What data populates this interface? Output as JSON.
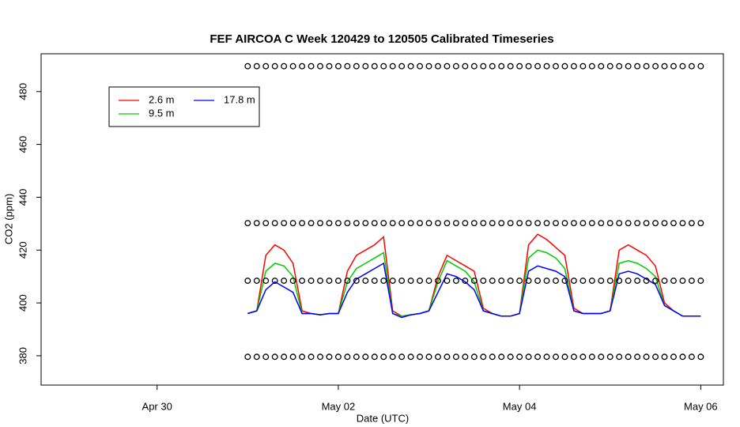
{
  "chart_data": {
    "type": "line",
    "title": "FEF AIRCOA C  Week 120429 to 120505  Calibrated Timeseries",
    "x_label": "Date (UTC)",
    "y_label": "CO2 (ppm)",
    "xlim": [
      -0.28,
      7.25
    ],
    "ylim": [
      368.9,
      494.3
    ],
    "xticks": [
      {
        "value": 1,
        "label": "Apr 30"
      },
      {
        "value": 3,
        "label": "May 02"
      },
      {
        "value": 5,
        "label": "May 04"
      },
      {
        "value": 7,
        "label": "May 06"
      }
    ],
    "yticks": [
      380,
      400,
      420,
      440,
      460,
      480
    ],
    "grid": false,
    "legend": "top-left",
    "x": [
      2.0,
      2.1,
      2.2,
      2.3,
      2.4,
      2.5,
      2.6,
      2.7,
      2.8,
      2.9,
      3.0,
      3.1,
      3.2,
      3.3,
      3.4,
      3.5,
      3.6,
      3.7,
      3.8,
      3.9,
      4.0,
      4.1,
      4.2,
      4.3,
      4.4,
      4.5,
      4.6,
      4.7,
      4.8,
      4.9,
      5.0,
      5.1,
      5.2,
      5.3,
      5.4,
      5.5,
      5.6,
      5.7,
      5.8,
      5.9,
      6.0,
      6.1,
      6.2,
      6.3,
      6.4,
      6.5,
      6.6,
      6.7,
      6.8,
      6.9,
      7.0
    ],
    "series": [
      {
        "name": "2.6 m",
        "color": "#ff0000",
        "values": [
          396,
          397,
          418,
          422,
          420,
          415,
          397,
          396,
          395.5,
          396,
          396,
          412,
          418,
          420,
          422,
          425,
          397,
          395,
          395.5,
          396,
          397,
          410,
          418,
          416,
          414,
          412,
          398,
          396,
          395,
          395,
          396,
          422,
          426,
          424,
          421,
          418,
          398,
          396,
          396,
          396,
          397,
          420,
          422,
          420,
          418,
          414,
          400,
          397,
          395,
          395,
          395
        ]
      },
      {
        "name": "9.5 m",
        "color": "#00cc00",
        "values": [
          396,
          397,
          412,
          415,
          414,
          410,
          396,
          396,
          395.5,
          396,
          396,
          408,
          413,
          415,
          417,
          419,
          396,
          395,
          395.5,
          396,
          397,
          408,
          416,
          414,
          412,
          408,
          397,
          396,
          395,
          395,
          396,
          417,
          420,
          419,
          417,
          413,
          397,
          396,
          396,
          396,
          397,
          415,
          416,
          415,
          413,
          410,
          399,
          397,
          395,
          395,
          395
        ]
      },
      {
        "name": "17.8 m",
        "color": "#0000ff",
        "values": [
          396,
          397,
          405,
          408,
          406,
          404,
          396,
          396,
          395.5,
          396,
          396,
          404,
          409,
          411,
          413,
          415,
          396,
          394.5,
          395.5,
          396,
          397,
          404,
          411,
          410,
          408,
          405,
          397,
          396,
          395,
          395,
          396,
          412,
          414,
          413,
          412,
          410,
          397,
          396,
          396,
          396,
          397,
          411,
          412,
          411,
          409,
          407,
          399,
          397,
          395,
          395,
          395
        ]
      },
      {
        "marker": "circle",
        "color": "#000000",
        "values": [
          489.6,
          489.6,
          489.6,
          489.6,
          489.6,
          489.6,
          489.6,
          489.6,
          489.6,
          489.6,
          489.6,
          489.6,
          489.6,
          489.6,
          489.6,
          489.6,
          489.6,
          489.6,
          489.6,
          489.6,
          489.6,
          489.6,
          489.6,
          489.6,
          489.6,
          489.6,
          489.6,
          489.6,
          489.6,
          489.6,
          489.6,
          489.6,
          489.6,
          489.6,
          489.6,
          489.6,
          489.6,
          489.6,
          489.6,
          489.6,
          489.6,
          489.6,
          489.6,
          489.6,
          489.6,
          489.6,
          489.6,
          489.6,
          489.6,
          489.6,
          489.6
        ]
      },
      {
        "marker": "circle",
        "color": "#000000",
        "values": [
          430.2,
          430.2,
          430.2,
          430.2,
          430.2,
          430.2,
          430.2,
          430.2,
          430.2,
          430.2,
          430.2,
          430.2,
          430.2,
          430.2,
          430.2,
          430.2,
          430.2,
          430.2,
          430.2,
          430.2,
          430.2,
          430.2,
          430.2,
          430.2,
          430.2,
          430.2,
          430.2,
          430.2,
          430.2,
          430.2,
          430.2,
          430.2,
          430.2,
          430.2,
          430.2,
          430.2,
          430.2,
          430.2,
          430.2,
          430.2,
          430.2,
          430.2,
          430.2,
          430.2,
          430.2,
          430.2,
          430.2,
          430.2,
          430.2,
          430.2,
          430.2
        ]
      },
      {
        "marker": "circle",
        "color": "#000000",
        "values": [
          408.4,
          408.4,
          408.4,
          408.4,
          408.4,
          408.4,
          408.4,
          408.4,
          408.4,
          408.4,
          408.4,
          408.4,
          408.4,
          408.4,
          408.4,
          408.4,
          408.4,
          408.4,
          408.4,
          408.4,
          408.4,
          408.4,
          408.4,
          408.4,
          408.4,
          408.4,
          408.4,
          408.4,
          408.4,
          408.4,
          408.4,
          408.4,
          408.4,
          408.4,
          408.4,
          408.4,
          408.4,
          408.4,
          408.4,
          408.4,
          408.4,
          408.4,
          408.4,
          408.4,
          408.4,
          408.4,
          408.4,
          408.4,
          408.4,
          408.4,
          408.4
        ]
      },
      {
        "marker": "circle",
        "color": "#000000",
        "values": [
          379.6,
          379.6,
          379.6,
          379.6,
          379.6,
          379.6,
          379.6,
          379.6,
          379.6,
          379.6,
          379.6,
          379.6,
          379.6,
          379.6,
          379.6,
          379.6,
          379.6,
          379.6,
          379.6,
          379.6,
          379.6,
          379.6,
          379.6,
          379.6,
          379.6,
          379.6,
          379.6,
          379.6,
          379.6,
          379.6,
          379.6,
          379.6,
          379.6,
          379.6,
          379.6,
          379.6,
          379.6,
          379.6,
          379.6,
          379.6,
          379.6,
          379.6,
          379.6,
          379.6,
          379.6,
          379.6,
          379.6,
          379.6,
          379.6,
          379.6,
          379.6
        ]
      }
    ]
  }
}
